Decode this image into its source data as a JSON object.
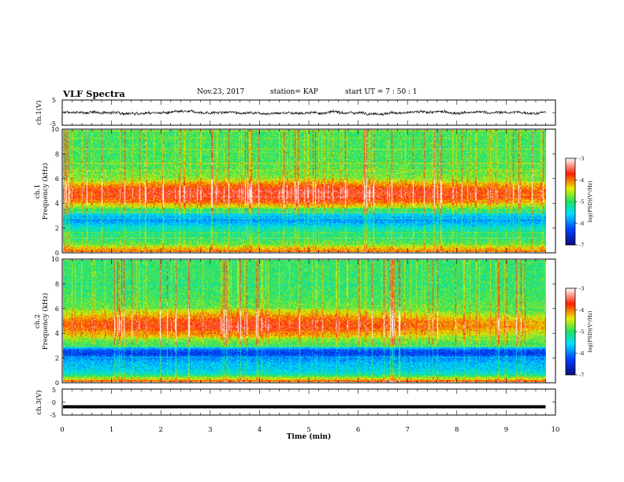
{
  "header": {
    "title": "VLF Spectra",
    "date": "Nov.23, 2017",
    "station": "station= KAP",
    "start": "start  UT =   7 : 50 : 1"
  },
  "chart_data": [
    {
      "type": "line",
      "title": "",
      "xlabel": "",
      "ylabel": "ch.1(V)",
      "ylim": [
        -5,
        5
      ],
      "y_ticks": [
        "5",
        "-5"
      ],
      "xlim": [
        0,
        10
      ],
      "series": [
        {
          "description": "noisy waveform, mean about 0 V, amplitude roughly ±1.5 V"
        }
      ]
    },
    {
      "type": "heatmap",
      "ylabel_top": "ch.1",
      "ylabel": "Frequency (kHz)",
      "ylim": [
        0,
        10
      ],
      "y_ticks": [
        "0",
        "2",
        "4",
        "6",
        "8",
        "10"
      ],
      "xlim": [
        0,
        10
      ],
      "data_end_min": 9.8,
      "colorbar": {
        "label": "log(PSD)(V²/Hz)",
        "ticks": [
          "-3",
          "-4",
          "-5",
          "-6",
          "-7"
        ],
        "range": [
          -7,
          -3
        ]
      },
      "frequency_profile_kHz": [
        [
          0.0,
          -4.0
        ],
        [
          0.3,
          -4.3
        ],
        [
          0.6,
          -4.8
        ],
        [
          1.0,
          -5.0
        ],
        [
          1.5,
          -5.1
        ],
        [
          2.0,
          -5.4
        ],
        [
          2.3,
          -5.7
        ],
        [
          2.6,
          -5.9
        ],
        [
          3.0,
          -5.6
        ],
        [
          3.3,
          -5.2
        ],
        [
          3.6,
          -4.8
        ],
        [
          4.0,
          -4.3
        ],
        [
          4.5,
          -3.8
        ],
        [
          5.0,
          -3.8
        ],
        [
          5.5,
          -4.2
        ],
        [
          6.0,
          -4.7
        ],
        [
          7.0,
          -4.9
        ],
        [
          8.0,
          -4.95
        ],
        [
          9.0,
          -4.95
        ],
        [
          10.0,
          -4.95
        ]
      ]
    },
    {
      "type": "heatmap",
      "ylabel_top": "ch.2",
      "ylabel": "Frequency (kHz)",
      "ylim": [
        0,
        10
      ],
      "y_ticks": [
        "0",
        "2",
        "4",
        "6",
        "8",
        "10"
      ],
      "xlim": [
        0,
        10
      ],
      "data_end_min": 9.8,
      "colorbar": {
        "label": "log(PSD)(V²/Hz)",
        "ticks": [
          "-3",
          "-4",
          "-5",
          "-6",
          "-7"
        ],
        "range": [
          -7,
          -3
        ]
      },
      "frequency_profile_kHz": [
        [
          0.0,
          -4.0
        ],
        [
          0.3,
          -4.6
        ],
        [
          0.6,
          -5.3
        ],
        [
          1.0,
          -5.6
        ],
        [
          1.5,
          -5.7
        ],
        [
          2.0,
          -6.0
        ],
        [
          2.3,
          -6.4
        ],
        [
          2.6,
          -6.2
        ],
        [
          3.0,
          -5.0
        ],
        [
          3.5,
          -4.7
        ],
        [
          4.0,
          -4.2
        ],
        [
          4.5,
          -3.9
        ],
        [
          5.0,
          -4.0
        ],
        [
          5.5,
          -4.4
        ],
        [
          6.0,
          -4.8
        ],
        [
          7.0,
          -4.95
        ],
        [
          8.0,
          -5.0
        ],
        [
          9.0,
          -5.0
        ],
        [
          10.0,
          -5.0
        ]
      ]
    },
    {
      "type": "line",
      "title": "",
      "xlabel": "Time (min)",
      "ylabel": "ch.3(V)",
      "ylim": [
        -5,
        5
      ],
      "y_ticks": [
        "5",
        "0",
        "-5"
      ],
      "xlim": [
        0,
        10
      ],
      "x_ticks": [
        "0",
        "1",
        "2",
        "3",
        "4",
        "5",
        "6",
        "7",
        "8",
        "9",
        "10"
      ],
      "series": [
        {
          "description": "flat trace",
          "value": -1.8
        }
      ]
    }
  ]
}
